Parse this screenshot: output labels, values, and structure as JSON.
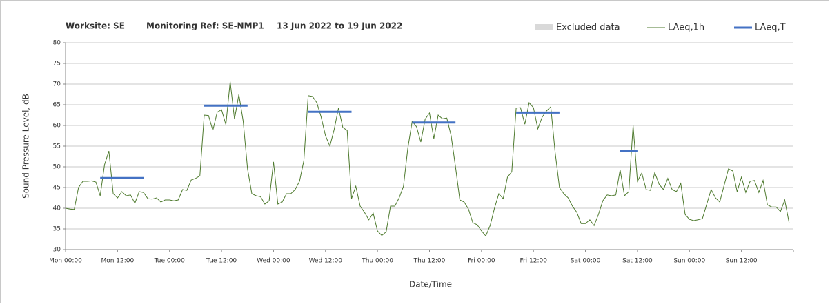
{
  "chart_data": {
    "type": "line",
    "title_parts": [
      "Worksite: SE",
      "Monitoring Ref: SE-NMP1",
      "13 Jun 2022 to 19 Jun 2022"
    ],
    "x_label": "Date/Time",
    "y_label": "Sound Pressure Level, dB",
    "excluded_data": {
      "name": "Excluded data",
      "color": "#d9d9d9"
    },
    "categories": [
      "Mon 00:00",
      null,
      null,
      null,
      null,
      null,
      null,
      null,
      null,
      null,
      null,
      null,
      "Mon 12:00",
      null,
      null,
      null,
      null,
      null,
      null,
      null,
      null,
      null,
      null,
      null,
      "Tue 00:00",
      null,
      null,
      null,
      null,
      null,
      null,
      null,
      null,
      null,
      null,
      null,
      "Tue 12:00",
      null,
      null,
      null,
      null,
      null,
      null,
      null,
      null,
      null,
      null,
      null,
      "Wed 00:00",
      null,
      null,
      null,
      null,
      null,
      null,
      null,
      null,
      null,
      null,
      null,
      "Wed 12:00",
      null,
      null,
      null,
      null,
      null,
      null,
      null,
      null,
      null,
      null,
      null,
      "Thu 00:00",
      null,
      null,
      null,
      null,
      null,
      null,
      null,
      null,
      null,
      null,
      null,
      "Thu 12:00",
      null,
      null,
      null,
      null,
      null,
      null,
      null,
      null,
      null,
      null,
      null,
      "Fri 00:00",
      null,
      null,
      null,
      null,
      null,
      null,
      null,
      null,
      null,
      null,
      null,
      "Fri 12:00",
      null,
      null,
      null,
      null,
      null,
      null,
      null,
      null,
      null,
      null,
      null,
      "Sat 00:00",
      null,
      null,
      null,
      null,
      null,
      null,
      null,
      null,
      null,
      null,
      null,
      "Sat 12:00",
      null,
      null,
      null,
      null,
      null,
      null,
      null,
      null,
      null,
      null,
      null,
      "Sun 00:00",
      null,
      null,
      null,
      null,
      null,
      null,
      null,
      null,
      null,
      null,
      null,
      "Sun 12:00",
      null,
      null,
      null,
      null,
      null,
      null,
      null,
      null,
      null,
      null,
      null
    ],
    "series": [
      {
        "name": "LAeq,1h",
        "color": "#4e7a2e",
        "width": 1,
        "values": [
          40,
          39.8,
          39.7,
          45,
          46.5,
          46.5,
          46.6,
          46.3,
          43,
          50.5,
          53.8,
          43.5,
          42.5,
          44,
          43,
          43.2,
          41.2,
          44,
          43.8,
          42.3,
          42.2,
          42.5,
          41.5,
          42,
          42,
          41.8,
          42,
          44.5,
          44.3,
          46.8,
          47.2,
          47.8,
          62.5,
          62.4,
          58.8,
          63.2,
          63.8,
          60.2,
          70.6,
          61.5,
          67.5,
          61,
          49.5,
          43.5,
          43,
          42.8,
          41,
          41.8,
          51.2,
          41,
          41.5,
          43.5,
          43.5,
          44.5,
          46.5,
          51.5,
          67.2,
          67,
          65.5,
          62,
          57.5,
          55,
          59,
          64.2,
          59.5,
          58.8,
          42.3,
          45.3,
          40.5,
          39,
          37.2,
          38.8,
          34.5,
          33.4,
          34.3,
          40.5,
          40.5,
          42.5,
          45.3,
          54.5,
          61,
          59.7,
          56,
          61.5,
          63,
          56.8,
          62.5,
          61.6,
          61.8,
          57.5,
          50,
          42,
          41.5,
          39.8,
          36.5,
          36,
          34.5,
          33.3,
          35.8,
          40,
          43.5,
          42.3,
          47.5,
          48.8,
          64.2,
          64.3,
          60.3,
          65.5,
          64.3,
          59.2,
          62,
          63.5,
          64.5,
          53.5,
          45,
          43.5,
          42.5,
          40.5,
          39,
          36.3,
          36.3,
          37.2,
          35.8,
          38.5,
          41.8,
          43.2,
          43,
          43.2,
          49.3,
          43,
          44,
          60,
          46.5,
          48.5,
          44.5,
          44.3,
          48.6,
          45.8,
          44.5,
          47.2,
          44.5,
          44,
          46,
          38.5,
          37.3,
          37,
          37.2,
          37.5,
          41,
          44.5,
          42.5,
          41.5,
          45.5,
          49.5,
          49,
          44,
          47.5,
          43.8,
          46.5,
          46.7,
          43.8,
          46.7,
          40.8,
          40.3,
          40.3,
          39.2,
          42,
          36.5
        ]
      },
      {
        "name": "LAeq,T",
        "color": "#4472c4",
        "width": 3,
        "values": [
          null,
          null,
          null,
          null,
          null,
          null,
          null,
          null,
          47.3,
          47.3,
          47.3,
          47.3,
          47.3,
          47.3,
          47.3,
          47.3,
          47.3,
          47.3,
          47.3,
          null,
          null,
          null,
          null,
          null,
          null,
          null,
          null,
          null,
          null,
          null,
          null,
          null,
          64.8,
          64.8,
          64.8,
          64.8,
          64.8,
          64.8,
          64.8,
          64.8,
          64.8,
          64.8,
          64.8,
          null,
          null,
          null,
          null,
          null,
          null,
          null,
          null,
          null,
          null,
          null,
          null,
          null,
          63.3,
          63.3,
          63.3,
          63.3,
          63.3,
          63.3,
          63.3,
          63.3,
          63.3,
          63.3,
          63.3,
          null,
          null,
          null,
          null,
          null,
          null,
          null,
          null,
          null,
          null,
          null,
          null,
          null,
          60.7,
          60.7,
          60.7,
          60.7,
          60.7,
          60.7,
          60.7,
          60.7,
          60.7,
          60.7,
          60.7,
          null,
          null,
          null,
          null,
          null,
          null,
          null,
          null,
          null,
          null,
          null,
          null,
          null,
          63.1,
          63.1,
          63.1,
          63.1,
          63.1,
          63.1,
          63.1,
          63.1,
          63.1,
          63.1,
          63.1,
          null,
          null,
          null,
          null,
          null,
          null,
          null,
          null,
          null,
          null,
          null,
          null,
          null,
          53.8,
          53.8,
          53.8,
          53.8,
          53.8,
          null,
          null,
          null,
          null,
          null,
          null,
          null,
          null,
          null,
          null,
          null,
          null,
          null,
          null,
          null,
          null,
          null,
          null,
          null,
          null,
          null,
          null,
          null,
          null,
          null,
          null,
          null,
          null,
          null,
          null,
          null,
          null,
          null,
          null,
          null
        ]
      }
    ],
    "ylim": [
      30,
      80
    ],
    "yticks": [
      30,
      35,
      40,
      45,
      50,
      55,
      60,
      65,
      70,
      75,
      80
    ],
    "grid": true
  }
}
